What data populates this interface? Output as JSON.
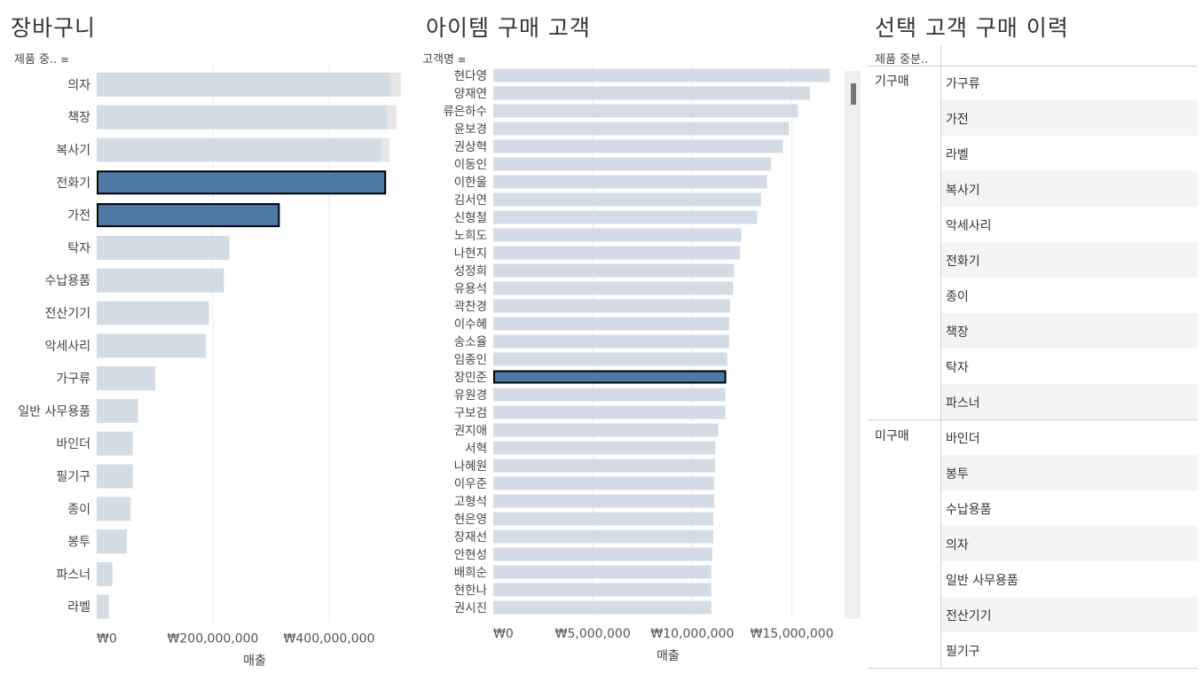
{
  "titles": {
    "cart": "장바구니",
    "customers": "아이템 구매 고객",
    "history": "선택 고객 구매 이력"
  },
  "cart_header": "제품 중..",
  "customers_header": "고객명",
  "history_header": "제품 중분..",
  "sort_icon": "sort-descending-icon",
  "colors": {
    "bar": "#d3dce5",
    "bar_ghost": "#e6e6e6",
    "highlight": "#4e79a7",
    "highlight_border": "#000000",
    "scrollbar_track": "#f0f0f0",
    "scrollbar_thumb": "#767676"
  },
  "chart_data": [
    {
      "type": "bar",
      "orientation": "horizontal",
      "title": "장바구니",
      "categories": [
        "의자",
        "책장",
        "복사기",
        "전화기",
        "가전",
        "탁자",
        "수납용품",
        "전산기기",
        "악세사리",
        "가구류",
        "일반 사무용품",
        "바인더",
        "필기구",
        "종이",
        "봉투",
        "파스너",
        "라벨"
      ],
      "values": [
        505000000,
        500000000,
        490000000,
        498000000,
        315000000,
        228000000,
        219000000,
        193000000,
        188000000,
        101000000,
        71000000,
        62000000,
        62000000,
        57000000,
        52000000,
        27000000,
        21000000
      ],
      "total_values": [
        523000000,
        516000000,
        504000000,
        498000000,
        315000000,
        228000000,
        219000000,
        193000000,
        188000000,
        101000000,
        71000000,
        62000000,
        62000000,
        59000000,
        52000000,
        27000000,
        21000000
      ],
      "highlighted": [
        "전화기",
        "가전"
      ],
      "xlabel": "매출",
      "xlim": [
        0,
        545000000
      ],
      "xticks": [
        0,
        200000000,
        400000000
      ],
      "xtick_labels": [
        "₩0",
        "₩200,000,000",
        "₩400,000,000"
      ]
    },
    {
      "type": "bar",
      "orientation": "horizontal",
      "title": "아이템 구매 고객",
      "categories": [
        "현다영",
        "양재연",
        "류은하수",
        "윤보경",
        "권상혁",
        "이동인",
        "이한울",
        "김서연",
        "신형철",
        "노희도",
        "나현지",
        "성정희",
        "유용석",
        "곽찬경",
        "이수혜",
        "송소율",
        "임종인",
        "장민준",
        "유원경",
        "구보검",
        "권지애",
        "서혁",
        "나혜원",
        "이우준",
        "고형석",
        "현은영",
        "장재선",
        "안현성",
        "배희순",
        "현한나",
        "권시진"
      ],
      "values": [
        16900000,
        15900000,
        15300000,
        14850000,
        14550000,
        13950000,
        13750000,
        13450000,
        13250000,
        12450000,
        12400000,
        12100000,
        12050000,
        11900000,
        11850000,
        11850000,
        11750000,
        11700000,
        11650000,
        11650000,
        11300000,
        11150000,
        11150000,
        11100000,
        11100000,
        11050000,
        11050000,
        11000000,
        10950000,
        10950000,
        10950000
      ],
      "highlighted": [
        "장민준"
      ],
      "xlabel": "매출",
      "xlim": [
        0,
        17200000
      ],
      "xticks": [
        0,
        5000000,
        10000000,
        15000000
      ],
      "xtick_labels": [
        "₩0",
        "₩5,000,000",
        "₩10,000,000",
        "₩15,000,000"
      ]
    }
  ],
  "history": {
    "groups": [
      {
        "label": "기구매",
        "items": [
          "가구류",
          "가전",
          "라벨",
          "복사기",
          "악세사리",
          "전화기",
          "종이",
          "책장",
          "탁자",
          "파스너"
        ]
      },
      {
        "label": "미구매",
        "items": [
          "바인더",
          "봉투",
          "수납용품",
          "의자",
          "일반 사무용품",
          "전산기기",
          "필기구"
        ]
      }
    ]
  }
}
